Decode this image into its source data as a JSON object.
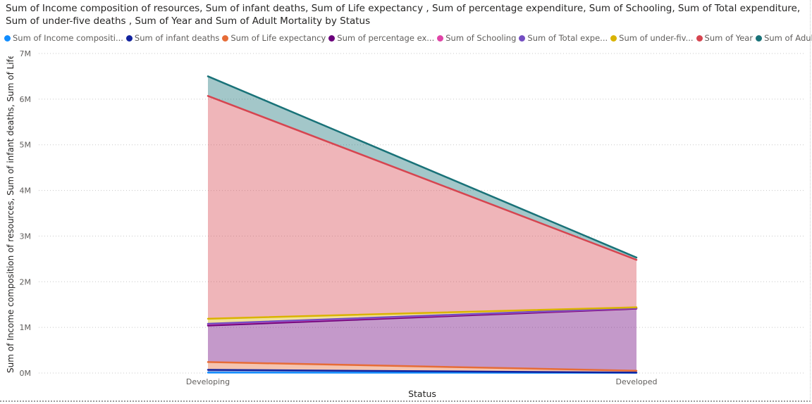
{
  "chart_data": {
    "type": "area",
    "title": "Sum of Income composition of resources, Sum of infant deaths, Sum of Life expectancy , Sum of percentage expenditure, Sum of Schooling, Sum of Total expenditure, Sum of under-five deaths , Sum of Year and Sum of Adult Mortality by Status",
    "xlabel": "Status",
    "ylabel": "Sum of Income composition of resources, Sum of infant deaths, Sum of Life e...",
    "categories": [
      "Developing",
      "Developed"
    ],
    "ylim": [
      0,
      7000000
    ],
    "yticks": [
      "0M",
      "1M",
      "2M",
      "3M",
      "4M",
      "5M",
      "6M",
      "7M"
    ],
    "stacked": true,
    "series": [
      {
        "name": "Sum of Income compositi...",
        "color": "#118DFF",
        "values": [
          10000,
          5000
        ]
      },
      {
        "name": "Sum of infant deaths",
        "color": "#12239E",
        "values": [
          60000,
          5000
        ]
      },
      {
        "name": "Sum of Life expectancy",
        "color": "#E66C37",
        "values": [
          170000,
          40000
        ]
      },
      {
        "name": "Sum of percentage ex...",
        "color": "#6B007B",
        "values": [
          800000,
          1360000
        ]
      },
      {
        "name": "Sum of Schooling",
        "color": "#E044A7",
        "values": [
          30000,
          10000
        ]
      },
      {
        "name": "Sum of Total expe...",
        "color": "#744EC2",
        "values": [
          10000,
          5000
        ]
      },
      {
        "name": "Sum of under-fiv...",
        "color": "#D9B300",
        "values": [
          110000,
          15000
        ]
      },
      {
        "name": "Sum of Year",
        "color": "#D64550",
        "values": [
          4880000,
          1040000
        ]
      },
      {
        "name": "Sum of Adult M...",
        "color": "#197278",
        "values": [
          430000,
          50000
        ]
      }
    ]
  }
}
